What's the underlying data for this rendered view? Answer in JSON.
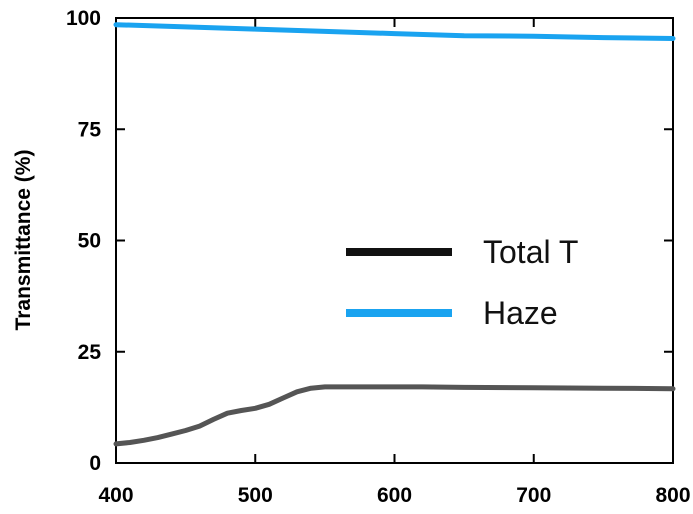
{
  "chart_data": {
    "type": "line",
    "title": "",
    "xlabel": "",
    "ylabel": "Transmittance (%)",
    "xlim": [
      400,
      800
    ],
    "ylim": [
      0,
      100
    ],
    "x_ticks": [
      400,
      500,
      600,
      700,
      800
    ],
    "y_ticks": [
      0,
      25,
      50,
      75,
      100
    ],
    "grid": false,
    "legend_position": "center-right",
    "series": [
      {
        "name": "Total T",
        "color": "#555555",
        "legend_color": "#111111",
        "x": [
          400,
          410,
          420,
          430,
          440,
          450,
          460,
          470,
          480,
          490,
          500,
          510,
          520,
          530,
          540,
          550,
          560,
          580,
          600,
          620,
          650,
          700,
          750,
          800
        ],
        "y": [
          4.3,
          4.6,
          5.1,
          5.7,
          6.5,
          7.3,
          8.3,
          9.8,
          11.2,
          11.8,
          12.3,
          13.2,
          14.6,
          16.0,
          16.8,
          17.1,
          17.1,
          17.1,
          17.1,
          17.1,
          17.0,
          16.9,
          16.8,
          16.7
        ]
      },
      {
        "name": "Haze",
        "color": "#1aa3f0",
        "legend_color": "#1aa3f0",
        "x": [
          400,
          450,
          500,
          550,
          600,
          650,
          700,
          750,
          800
        ],
        "y": [
          98.5,
          98.0,
          97.5,
          97.0,
          96.5,
          96.0,
          95.9,
          95.6,
          95.4
        ]
      }
    ]
  }
}
